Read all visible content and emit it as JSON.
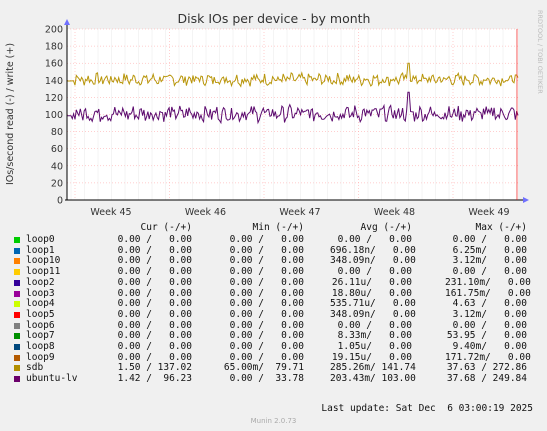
{
  "chart_data": {
    "type": "line",
    "title": "Disk IOs per device - by month",
    "ylabel": "IOs/second read (-) / write (+)",
    "ylim": [
      0,
      200
    ],
    "yticks": [
      0,
      20,
      40,
      60,
      80,
      100,
      120,
      140,
      160,
      180,
      200
    ],
    "xticks": [
      "Week 45",
      "Week 46",
      "Week 47",
      "Week 48",
      "Week 49"
    ],
    "grid": true,
    "series": [
      {
        "name": "sdb",
        "color": "#b8960a",
        "base": 141,
        "amp": 6,
        "spike": 160,
        "spike_at": 0.756
      },
      {
        "name": "ubuntu-lv",
        "color": "#5c0a6e",
        "base": 101,
        "amp": 8,
        "spike": 126,
        "spike_at": 0.756
      }
    ]
  },
  "side_label": "RRDTOOL / TOBI OETIKER",
  "legend": {
    "headers": {
      "cur": "Cur (-/+)",
      "min": "Min (-/+)",
      "avg": "Avg (-/+)",
      "max": "Max (-/+)"
    },
    "rows": [
      {
        "name": "loop0",
        "color": "#00cc00",
        "cur": "0.00 /   0.00",
        "min": "0.00 /   0.00",
        "avg": "0.00 /   0.00",
        "max": "0.00 /   0.00"
      },
      {
        "name": "loop1",
        "color": "#0066b3",
        "cur": "0.00 /   0.00",
        "min": "0.00 /   0.00",
        "avg": "696.18n/   0.00",
        "max": "6.25m/   0.00"
      },
      {
        "name": "loop10",
        "color": "#ff8000",
        "cur": "0.00 /   0.00",
        "min": "0.00 /   0.00",
        "avg": "348.09n/   0.00",
        "max": "3.12m/   0.00"
      },
      {
        "name": "loop11",
        "color": "#ffcc00",
        "cur": "0.00 /   0.00",
        "min": "0.00 /   0.00",
        "avg": "0.00 /   0.00",
        "max": "0.00 /   0.00"
      },
      {
        "name": "loop2",
        "color": "#330099",
        "cur": "0.00 /   0.00",
        "min": "0.00 /   0.00",
        "avg": "26.11u/   0.00",
        "max": "231.10m/   0.00"
      },
      {
        "name": "loop3",
        "color": "#990099",
        "cur": "0.00 /   0.00",
        "min": "0.00 /   0.00",
        "avg": "18.80u/   0.00",
        "max": "161.75m/   0.00"
      },
      {
        "name": "loop4",
        "color": "#ccff00",
        "cur": "0.00 /   0.00",
        "min": "0.00 /   0.00",
        "avg": "535.71u/   0.00",
        "max": "4.63 /   0.00"
      },
      {
        "name": "loop5",
        "color": "#ff0000",
        "cur": "0.00 /   0.00",
        "min": "0.00 /   0.00",
        "avg": "348.09n/   0.00",
        "max": "3.12m/   0.00"
      },
      {
        "name": "loop6",
        "color": "#808080",
        "cur": "0.00 /   0.00",
        "min": "0.00 /   0.00",
        "avg": "0.00 /   0.00",
        "max": "0.00 /   0.00"
      },
      {
        "name": "loop7",
        "color": "#008f00",
        "cur": "0.00 /   0.00",
        "min": "0.00 /   0.00",
        "avg": "8.33m/   0.00",
        "max": "53.95 /   0.00"
      },
      {
        "name": "loop8",
        "color": "#00487d",
        "cur": "0.00 /   0.00",
        "min": "0.00 /   0.00",
        "avg": "1.05u/   0.00",
        "max": "9.40m/   0.00"
      },
      {
        "name": "loop9",
        "color": "#b35a00",
        "cur": "0.00 /   0.00",
        "min": "0.00 /   0.00",
        "avg": "19.15u/   0.00",
        "max": "171.72m/   0.00"
      },
      {
        "name": "sdb",
        "color": "#b38f00",
        "cur": "1.50 / 137.02",
        "min": "65.00m/  79.71",
        "avg": "285.26m/ 141.74",
        "max": "37.63 / 272.86"
      },
      {
        "name": "ubuntu-lv",
        "color": "#6b006b",
        "cur": "1.42 /  96.23",
        "min": "0.00 /  33.78",
        "avg": "203.43m/ 103.00",
        "max": "37.68 / 249.84"
      }
    ]
  },
  "last_update": "Last update: Sat Dec  6 03:00:19 2025",
  "footer": "Munin 2.0.73"
}
